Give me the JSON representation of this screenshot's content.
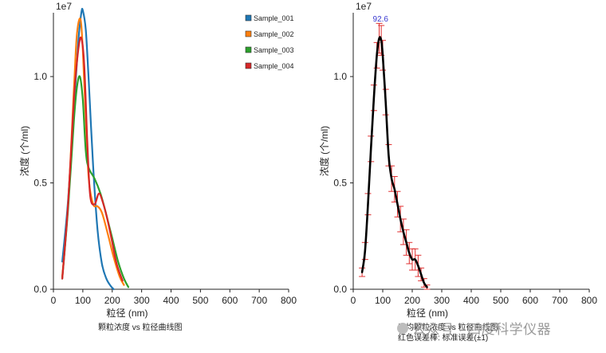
{
  "chart_data": [
    {
      "type": "line",
      "scale_label": "1e7",
      "xlabel": "粒径 (nm)",
      "ylabel": "浓度 (个/ml)",
      "caption": "颗粒浓度 vs 粒径曲线图",
      "xlim": [
        0,
        800
      ],
      "ylim": [
        0,
        1.3
      ],
      "xticks": [
        0,
        100,
        200,
        300,
        400,
        500,
        600,
        700,
        800
      ],
      "yticks": [
        0.0,
        0.5,
        1.0
      ],
      "ytick_labels": [
        "0.0",
        "0.5",
        "1.0"
      ],
      "legend_position": "top-right",
      "series": [
        {
          "name": "Sample_001",
          "color": "#1f77b4",
          "x": [
            30,
            50,
            70,
            85,
            95,
            100,
            110,
            120,
            135,
            150,
            165,
            180,
            195,
            205
          ],
          "y": [
            0.13,
            0.42,
            0.86,
            1.17,
            1.3,
            1.31,
            1.22,
            0.98,
            0.58,
            0.28,
            0.12,
            0.05,
            0.015,
            0.0
          ]
        },
        {
          "name": "Sample_002",
          "color": "#ff7f0e",
          "x": [
            30,
            50,
            70,
            80,
            92,
            100,
            110,
            120,
            135,
            150,
            165,
            185,
            205,
            225,
            240
          ],
          "y": [
            0.06,
            0.4,
            0.95,
            1.2,
            1.27,
            1.12,
            0.8,
            0.52,
            0.4,
            0.39,
            0.36,
            0.26,
            0.15,
            0.06,
            0.02
          ]
        },
        {
          "name": "Sample_003",
          "color": "#2ca02c",
          "x": [
            30,
            50,
            70,
            80,
            90,
            100,
            110,
            120,
            140,
            160,
            180,
            200,
            220,
            240,
            255
          ],
          "y": [
            0.05,
            0.38,
            0.8,
            0.95,
            1.0,
            0.89,
            0.65,
            0.57,
            0.52,
            0.45,
            0.35,
            0.24,
            0.13,
            0.05,
            0.01
          ]
        },
        {
          "name": "Sample_004",
          "color": "#d62728",
          "x": [
            30,
            50,
            70,
            85,
            95,
            105,
            115,
            125,
            140,
            155,
            170,
            185,
            200,
            215,
            235
          ],
          "y": [
            0.05,
            0.4,
            0.9,
            1.13,
            1.18,
            1.05,
            0.7,
            0.44,
            0.4,
            0.45,
            0.4,
            0.32,
            0.22,
            0.12,
            0.04
          ]
        }
      ]
    },
    {
      "type": "line",
      "scale_label": "1e7",
      "xlabel": "粒径 (nm)",
      "ylabel": "浓度 (个/ml)",
      "caption_lines": [
        "平均颗粒浓度 vs 粒径曲线图",
        "红色误差棒: 标准误差(±1)"
      ],
      "peak_label": "92.6",
      "peak_x": 92.6,
      "xlim": [
        0,
        800
      ],
      "ylim": [
        0,
        1.3
      ],
      "xticks": [
        0,
        100,
        200,
        300,
        400,
        500,
        600,
        700,
        800
      ],
      "yticks": [
        0.0,
        0.5,
        1.0
      ],
      "ytick_labels": [
        "0.0",
        "0.5",
        "1.0"
      ],
      "series": [
        {
          "name": "平均",
          "color": "#000000",
          "error_color": "#e03030",
          "x": [
            30,
            40,
            50,
            60,
            70,
            80,
            88,
            95,
            100,
            110,
            120,
            130,
            140,
            150,
            160,
            170,
            180,
            190,
            200,
            210,
            220,
            230,
            240,
            250
          ],
          "y": [
            0.08,
            0.18,
            0.4,
            0.66,
            0.9,
            1.1,
            1.18,
            1.17,
            1.1,
            0.88,
            0.63,
            0.52,
            0.47,
            0.4,
            0.33,
            0.27,
            0.22,
            0.17,
            0.14,
            0.14,
            0.11,
            0.07,
            0.03,
            0.01
          ],
          "err": [
            0.02,
            0.04,
            0.05,
            0.06,
            0.06,
            0.06,
            0.07,
            0.07,
            0.07,
            0.06,
            0.05,
            0.06,
            0.06,
            0.06,
            0.06,
            0.06,
            0.06,
            0.05,
            0.05,
            0.05,
            0.05,
            0.03,
            0.02,
            0.01
          ]
        }
      ]
    }
  ],
  "watermark": {
    "text": "公众号 · 四度科学仪器"
  }
}
